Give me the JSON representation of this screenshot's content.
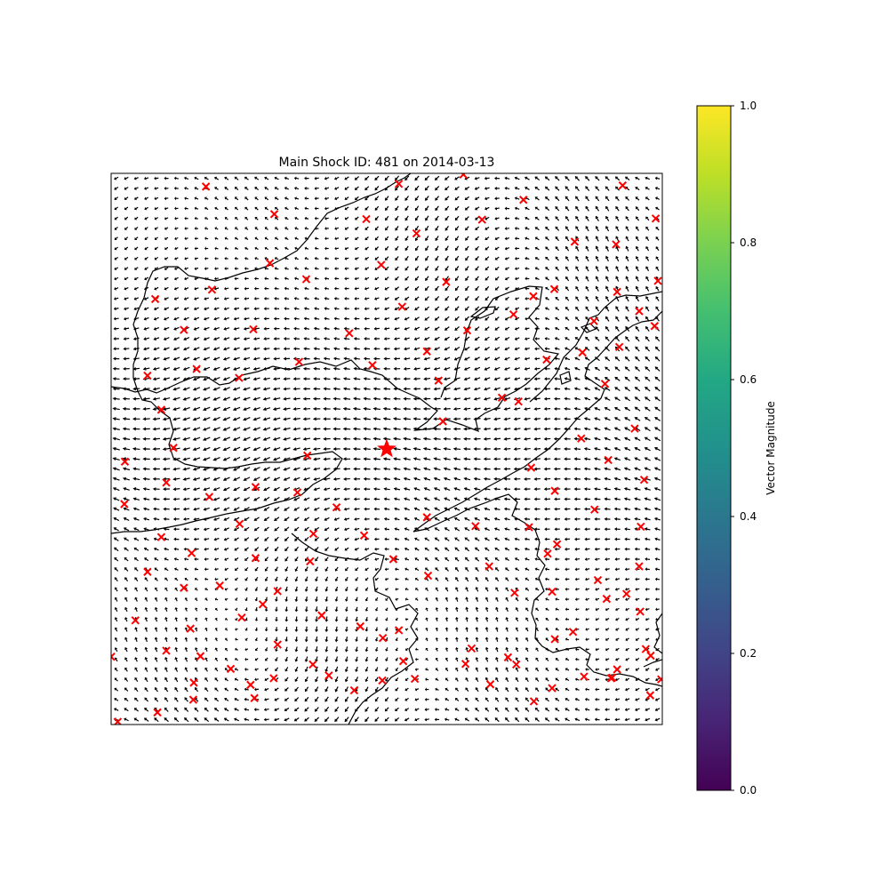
{
  "chart_data": {
    "type": "quiver",
    "title": "Main Shock ID: 481 on 2014-03-13",
    "colorbar": {
      "label": "Vector Magnitude",
      "ticks": [
        "0.0",
        "0.2",
        "0.4",
        "0.6",
        "0.8",
        "1.0"
      ],
      "range": [
        0,
        1
      ],
      "colormap": "viridis"
    },
    "axes": {
      "xlim": [
        0,
        1
      ],
      "ylim": [
        0,
        1
      ],
      "ticks_shown": false,
      "grid": false
    },
    "main_shock": {
      "x": 0.5,
      "y": 0.5,
      "marker": "star",
      "color": "#ff0000"
    },
    "events_marker": {
      "marker": "x",
      "color": "#ff0000"
    },
    "events": [
      [
        0.172,
        0.976
      ],
      [
        0.296,
        0.926
      ],
      [
        0.463,
        0.917
      ],
      [
        0.554,
        0.891
      ],
      [
        0.673,
        0.916
      ],
      [
        0.748,
        0.952
      ],
      [
        0.841,
        0.876
      ],
      [
        0.916,
        0.871
      ],
      [
        0.928,
        0.978
      ],
      [
        0.988,
        0.918
      ],
      [
        0.639,
        0.998
      ],
      [
        0.522,
        0.981
      ],
      [
        0.288,
        0.837
      ],
      [
        0.49,
        0.834
      ],
      [
        0.08,
        0.772
      ],
      [
        0.183,
        0.789
      ],
      [
        0.354,
        0.808
      ],
      [
        0.608,
        0.803
      ],
      [
        0.73,
        0.744
      ],
      [
        0.804,
        0.79
      ],
      [
        0.876,
        0.732
      ],
      [
        0.918,
        0.785
      ],
      [
        0.958,
        0.75
      ],
      [
        0.992,
        0.805
      ],
      [
        0.132,
        0.716
      ],
      [
        0.258,
        0.717
      ],
      [
        0.432,
        0.71
      ],
      [
        0.528,
        0.758
      ],
      [
        0.646,
        0.715
      ],
      [
        0.766,
        0.777
      ],
      [
        0.855,
        0.675
      ],
      [
        0.922,
        0.685
      ],
      [
        0.986,
        0.723
      ],
      [
        0.066,
        0.633
      ],
      [
        0.155,
        0.645
      ],
      [
        0.232,
        0.629
      ],
      [
        0.341,
        0.658
      ],
      [
        0.474,
        0.652
      ],
      [
        0.573,
        0.677
      ],
      [
        0.594,
        0.624
      ],
      [
        0.709,
        0.593
      ],
      [
        0.79,
        0.662
      ],
      [
        0.896,
        0.618
      ],
      [
        0.091,
        0.571
      ],
      [
        0.113,
        0.502
      ],
      [
        0.025,
        0.477
      ],
      [
        0.1,
        0.439
      ],
      [
        0.178,
        0.413
      ],
      [
        0.262,
        0.431
      ],
      [
        0.338,
        0.421
      ],
      [
        0.356,
        0.488
      ],
      [
        0.602,
        0.55
      ],
      [
        0.739,
        0.586
      ],
      [
        0.762,
        0.466
      ],
      [
        0.805,
        0.424
      ],
      [
        0.853,
        0.519
      ],
      [
        0.902,
        0.48
      ],
      [
        0.95,
        0.537
      ],
      [
        0.967,
        0.444
      ],
      [
        0.024,
        0.4
      ],
      [
        0.091,
        0.34
      ],
      [
        0.146,
        0.311
      ],
      [
        0.233,
        0.364
      ],
      [
        0.262,
        0.302
      ],
      [
        0.367,
        0.346
      ],
      [
        0.409,
        0.394
      ],
      [
        0.573,
        0.376
      ],
      [
        0.661,
        0.36
      ],
      [
        0.758,
        0.358
      ],
      [
        0.809,
        0.327
      ],
      [
        0.877,
        0.39
      ],
      [
        0.961,
        0.359
      ],
      [
        0.066,
        0.277
      ],
      [
        0.132,
        0.248
      ],
      [
        0.197,
        0.252
      ],
      [
        0.275,
        0.218
      ],
      [
        0.361,
        0.296
      ],
      [
        0.459,
        0.343
      ],
      [
        0.512,
        0.3
      ],
      [
        0.575,
        0.27
      ],
      [
        0.686,
        0.287
      ],
      [
        0.792,
        0.31
      ],
      [
        0.883,
        0.262
      ],
      [
        0.935,
        0.237
      ],
      [
        0.958,
        0.287
      ],
      [
        0.044,
        0.189
      ],
      [
        0.144,
        0.174
      ],
      [
        0.237,
        0.194
      ],
      [
        0.302,
        0.242
      ],
      [
        0.382,
        0.198
      ],
      [
        0.452,
        0.178
      ],
      [
        0.522,
        0.171
      ],
      [
        0.732,
        0.239
      ],
      [
        0.8,
        0.241
      ],
      [
        0.899,
        0.228
      ],
      [
        0.96,
        0.205
      ],
      [
        0.1,
        0.134
      ],
      [
        0.162,
        0.124
      ],
      [
        0.217,
        0.101
      ],
      [
        0.302,
        0.145
      ],
      [
        0.366,
        0.109
      ],
      [
        0.493,
        0.157
      ],
      [
        0.654,
        0.138
      ],
      [
        0.72,
        0.122
      ],
      [
        0.805,
        0.155
      ],
      [
        0.838,
        0.168
      ],
      [
        0.918,
        0.1
      ],
      [
        0.979,
        0.125
      ],
      [
        0.15,
        0.076
      ],
      [
        0.26,
        0.048
      ],
      [
        0.395,
        0.089
      ],
      [
        0.492,
        0.08
      ],
      [
        0.53,
        0.115
      ],
      [
        0.643,
        0.11
      ],
      [
        0.688,
        0.073
      ],
      [
        0.735,
        0.109
      ],
      [
        0.858,
        0.087
      ],
      [
        0.907,
        0.084
      ],
      [
        0.97,
        0.137
      ],
      [
        0.0,
        0.123
      ],
      [
        0.084,
        0.022
      ],
      [
        0.149,
        0.045
      ],
      [
        0.253,
        0.072
      ],
      [
        0.295,
        0.084
      ],
      [
        0.441,
        0.062
      ],
      [
        0.551,
        0.083
      ],
      [
        0.8,
        0.066
      ],
      [
        0.767,
        0.042
      ],
      [
        0.909,
        0.085
      ],
      [
        0.978,
        0.053
      ],
      [
        0.998,
        0.082
      ],
      [
        0.012,
        0.005
      ]
    ]
  }
}
